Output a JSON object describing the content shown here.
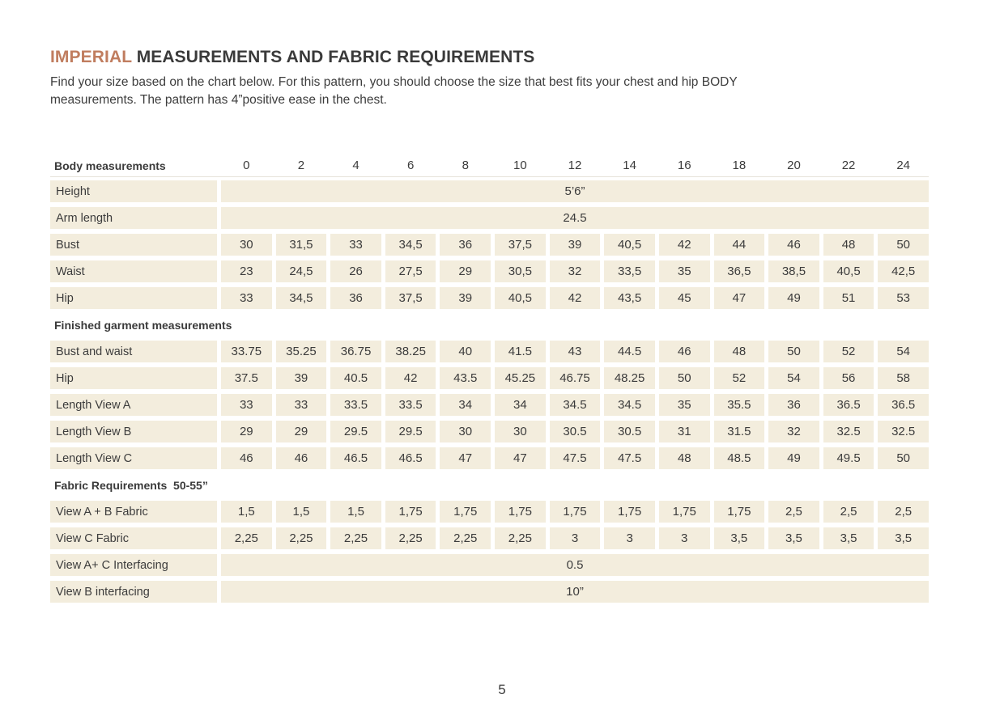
{
  "colors": {
    "accent": "#c07d5f",
    "cell_background": "#f3eddd",
    "text": "#3b3b3b",
    "header_rule": "#e6e3da"
  },
  "header": {
    "title_accent": "IMPERIAL",
    "title_rest": " MEASUREMENTS AND FABRIC REQUIREMENTS",
    "intro_line1": "Find your size based on the chart below. For this pattern, you should choose the size that best fits your chest and hip BODY",
    "intro_line2": "measurements. The pattern has 4”positive ease in the chest."
  },
  "table": {
    "header": {
      "label": "Body measurements",
      "sizes": [
        "0",
        "2",
        "4",
        "6",
        "8",
        "10",
        "12",
        "14",
        "16",
        "18",
        "20",
        "22",
        "24"
      ]
    },
    "sections": [
      {
        "heading": null,
        "rows": [
          {
            "label": "Height",
            "span_value": "5’6”"
          },
          {
            "label": "Arm length",
            "span_value": "24.5"
          },
          {
            "label": "Bust",
            "values": [
              "30",
              "31,5",
              "33",
              "34,5",
              "36",
              "37,5",
              "39",
              "40,5",
              "42",
              "44",
              "46",
              "48",
              "50"
            ]
          },
          {
            "label": "Waist",
            "values": [
              "23",
              "24,5",
              "26",
              "27,5",
              "29",
              "30,5",
              "32",
              "33,5",
              "35",
              "36,5",
              "38,5",
              "40,5",
              "42,5"
            ]
          },
          {
            "label": "Hip",
            "values": [
              "33",
              "34,5",
              "36",
              "37,5",
              "39",
              "40,5",
              "42",
              "43,5",
              "45",
              "47",
              "49",
              "51",
              "53"
            ]
          }
        ]
      },
      {
        "heading": "Finished garment measurements",
        "rows": [
          {
            "label": "Bust and waist",
            "values": [
              "33.75",
              "35.25",
              "36.75",
              "38.25",
              "40",
              "41.5",
              "43",
              "44.5",
              "46",
              "48",
              "50",
              "52",
              "54"
            ]
          },
          {
            "label": "Hip",
            "values": [
              "37.5",
              "39",
              "40.5",
              "42",
              "43.5",
              "45.25",
              "46.75",
              "48.25",
              "50",
              "52",
              "54",
              "56",
              "58"
            ]
          },
          {
            "label": "Length View A",
            "values": [
              "33",
              "33",
              "33.5",
              "33.5",
              "34",
              "34",
              "34.5",
              "34.5",
              "35",
              "35.5",
              "36",
              "36.5",
              "36.5"
            ]
          },
          {
            "label": "Length View B",
            "values": [
              "29",
              "29",
              "29.5",
              "29.5",
              "30",
              "30",
              "30.5",
              "30.5",
              "31",
              "31.5",
              "32",
              "32.5",
              "32.5"
            ]
          },
          {
            "label": "Length View C",
            "values": [
              "46",
              "46",
              "46.5",
              "46.5",
              "47",
              "47",
              "47.5",
              "47.5",
              "48",
              "48.5",
              "49",
              "49.5",
              "50"
            ]
          }
        ]
      },
      {
        "heading": "Fabric Requirements  50-55”",
        "rows": [
          {
            "label": "View A + B Fabric",
            "values": [
              "1,5",
              "1,5",
              "1,5",
              "1,75",
              "1,75",
              "1,75",
              "1,75",
              "1,75",
              "1,75",
              "1,75",
              "2,5",
              "2,5",
              "2,5"
            ]
          },
          {
            "label": "View C Fabric",
            "values": [
              "2,25",
              "2,25",
              "2,25",
              "2,25",
              "2,25",
              "2,25",
              "3",
              "3",
              "3",
              "3,5",
              "3,5",
              "3,5",
              "3,5"
            ]
          },
          {
            "label": "View A+ C Interfacing",
            "span_value": "0.5"
          },
          {
            "label": "View B interfacing",
            "span_value": "10”"
          }
        ]
      }
    ]
  },
  "footer": {
    "page_number": "5"
  }
}
